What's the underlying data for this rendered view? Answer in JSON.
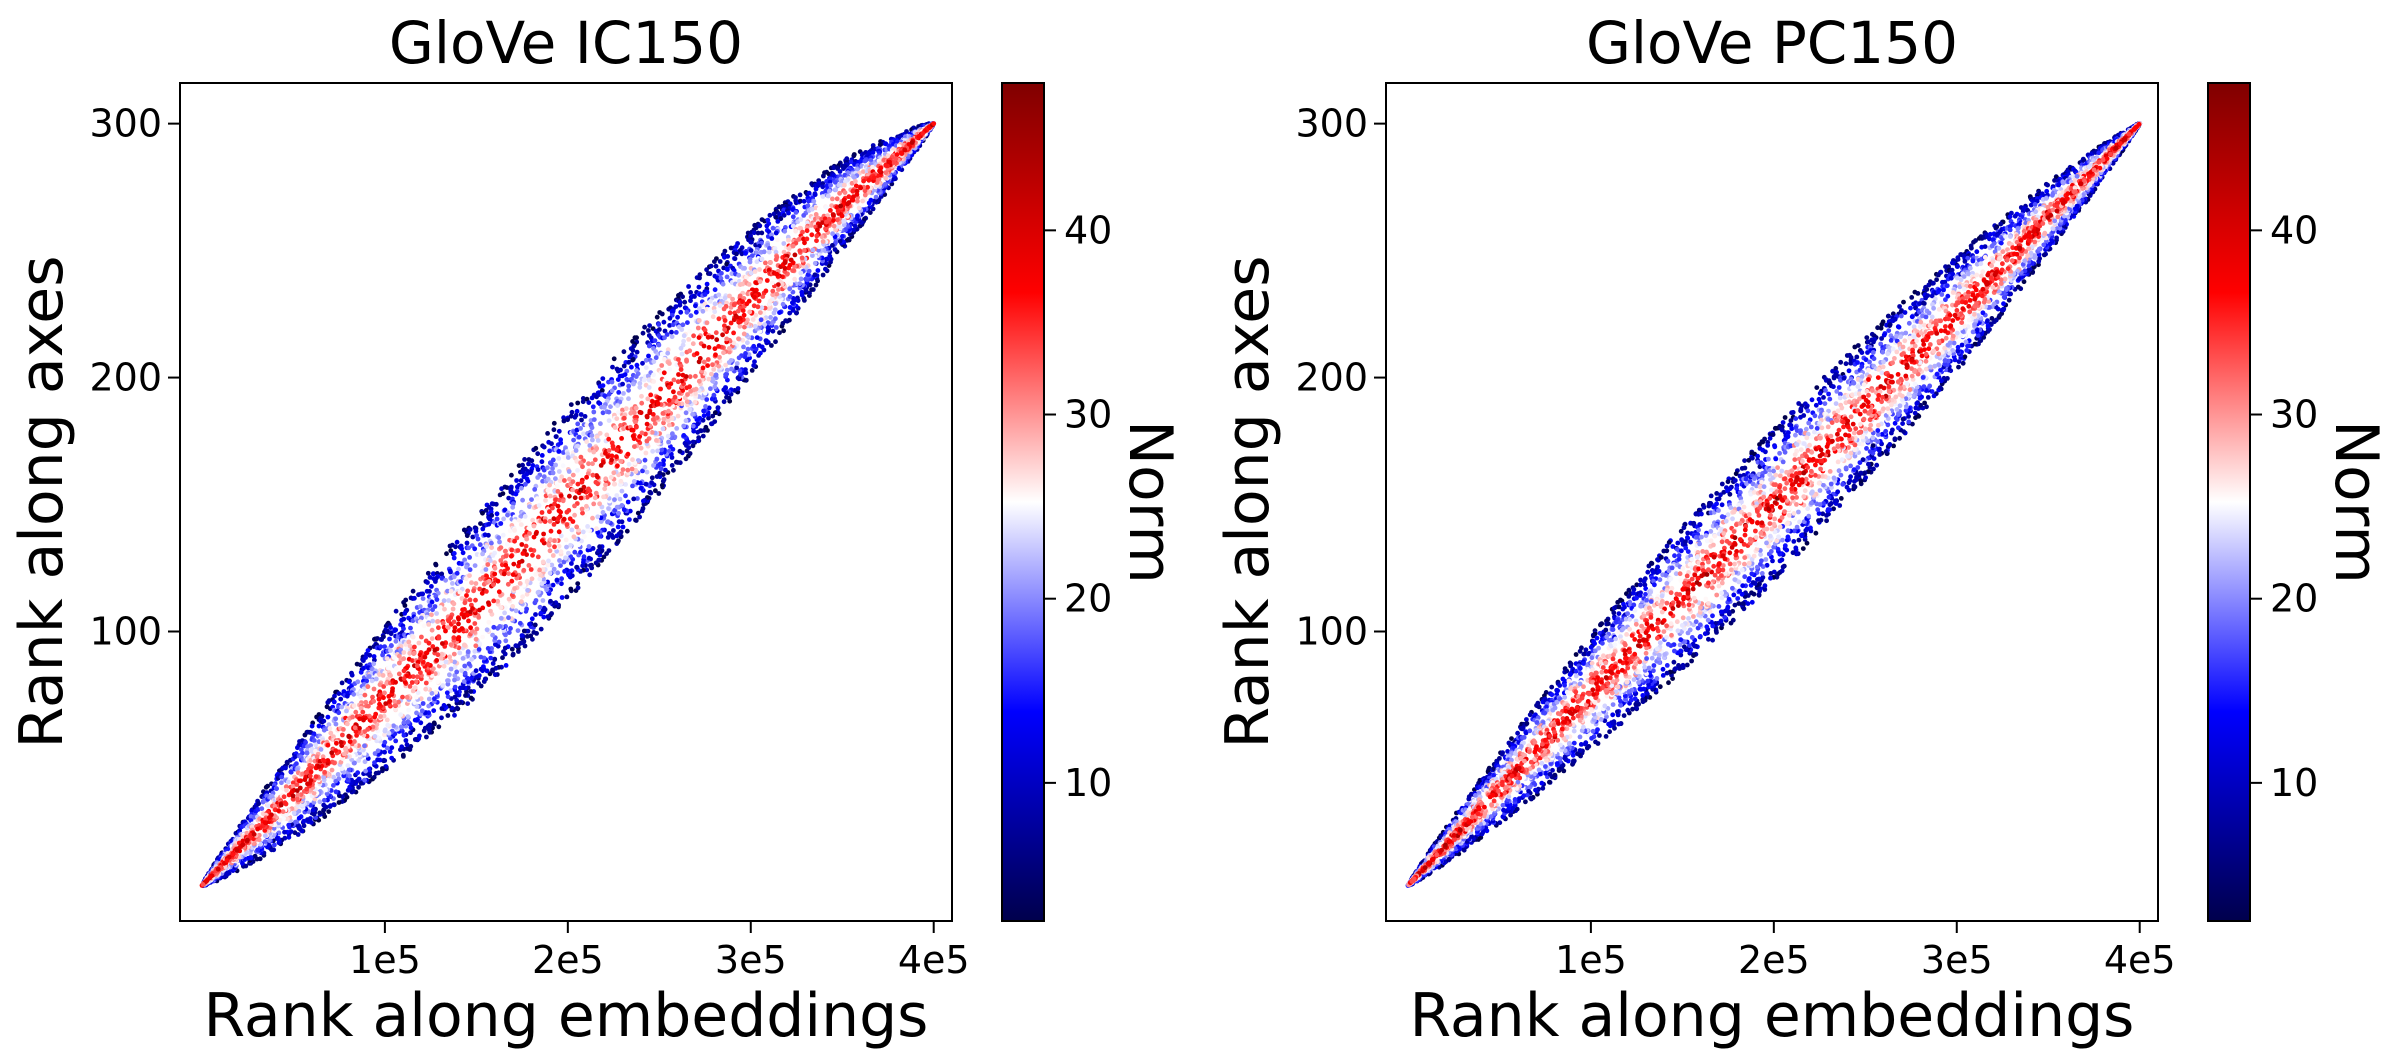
{
  "chart_data": [
    {
      "type": "scatter",
      "title": "GloVe IC150",
      "xlabel": "Rank along embeddings",
      "ylabel": "Rank along axes",
      "xlim": [
        -12000,
        410000
      ],
      "ylim": [
        -14,
        316
      ],
      "xticks": [
        {
          "value": 100000,
          "label": "1e5"
        },
        {
          "value": 200000,
          "label": "2e5"
        },
        {
          "value": 300000,
          "label": "3e5"
        },
        {
          "value": 400000,
          "label": "4e5"
        }
      ],
      "yticks": [
        {
          "value": 100,
          "label": "100"
        },
        {
          "value": 200,
          "label": "200"
        },
        {
          "value": 300,
          "label": "300"
        }
      ],
      "band": {
        "description": "dense scatter of ~400000 points along the diagonal; color = Norm",
        "start": [
          0,
          0
        ],
        "end": [
          400000,
          300
        ],
        "centerline": [
          [
            0,
            0
          ],
          [
            50000,
            36
          ],
          [
            100000,
            74
          ],
          [
            150000,
            110
          ],
          [
            200000,
            150
          ],
          [
            250000,
            190
          ],
          [
            300000,
            230
          ],
          [
            350000,
            268
          ],
          [
            400000,
            300
          ]
        ],
        "max_half_width_y": 38
      },
      "colorbar": {
        "label": "Norm",
        "range": [
          2.5,
          48
        ],
        "ticks": [
          10,
          20,
          30,
          40
        ],
        "colormap": "seismic",
        "colors": [
          "#00004c",
          "#0000ff",
          "#ffffff",
          "#ff0000",
          "#800000"
        ]
      }
    },
    {
      "type": "scatter",
      "title": "GloVe PC150",
      "xlabel": "Rank along embeddings",
      "ylabel": "Rank along axes",
      "xlim": [
        -12000,
        410000
      ],
      "ylim": [
        -14,
        316
      ],
      "xticks": [
        {
          "value": 100000,
          "label": "1e5"
        },
        {
          "value": 200000,
          "label": "2e5"
        },
        {
          "value": 300000,
          "label": "3e5"
        },
        {
          "value": 400000,
          "label": "4e5"
        }
      ],
      "yticks": [
        {
          "value": 100,
          "label": "100"
        },
        {
          "value": 200,
          "label": "200"
        },
        {
          "value": 300,
          "label": "300"
        }
      ],
      "band": {
        "description": "dense scatter of ~400000 points along the diagonal; color = Norm",
        "start": [
          0,
          0
        ],
        "end": [
          400000,
          300
        ],
        "centerline": [
          [
            0,
            0
          ],
          [
            50000,
            38
          ],
          [
            100000,
            76
          ],
          [
            150000,
            113
          ],
          [
            200000,
            150
          ],
          [
            250000,
            188
          ],
          [
            300000,
            225
          ],
          [
            350000,
            263
          ],
          [
            400000,
            300
          ]
        ],
        "max_half_width_y": 30
      },
      "colorbar": {
        "label": "Norm",
        "range": [
          2.5,
          48
        ],
        "ticks": [
          10,
          20,
          30,
          40
        ],
        "colormap": "seismic",
        "colors": [
          "#00004c",
          "#0000ff",
          "#ffffff",
          "#ff0000",
          "#800000"
        ]
      }
    }
  ]
}
